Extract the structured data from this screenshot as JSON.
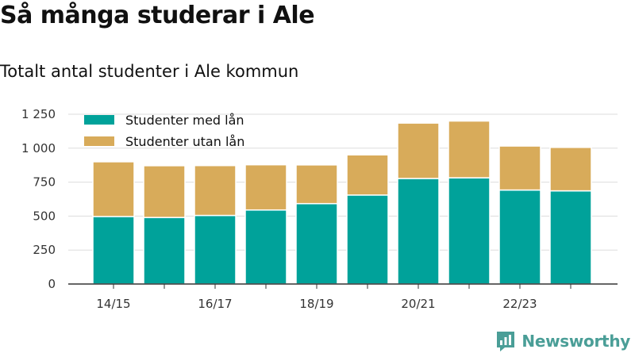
{
  "header": {
    "title": "Så många studerar i Ale",
    "subtitle": "Totalt antal studenter i Ale kommun"
  },
  "brand": {
    "name": "Newsworthy",
    "color": "#4a9e97",
    "icon": "newsworthy-logo-icon"
  },
  "chart_data": {
    "type": "bar",
    "stacked": true,
    "categories": [
      "14/15",
      "15/16",
      "16/17",
      "17/18",
      "18/19",
      "19/20",
      "20/21",
      "21/22",
      "22/23",
      "23/24"
    ],
    "tick_labels": [
      "14/15",
      "",
      "16/17",
      "",
      "18/19",
      "",
      "20/21",
      "",
      "22/23",
      ""
    ],
    "series": [
      {
        "name": "Studenter med lån",
        "color": "#00a29a",
        "values": [
          497,
          490,
          505,
          545,
          592,
          655,
          777,
          782,
          692,
          686
        ]
      },
      {
        "name": "Studenter utan lån",
        "color": "#d8ab5a",
        "values": [
          403,
          381,
          367,
          333,
          285,
          296,
          408,
          418,
          324,
          320
        ]
      }
    ],
    "y_ticks": [
      0,
      250,
      500,
      750,
      1000,
      1250
    ],
    "y_tick_labels": [
      "0",
      "250",
      "500",
      "750",
      "1 000",
      "1 250"
    ],
    "ylim": [
      0,
      1250
    ],
    "xlabel": "",
    "ylabel": "",
    "grid": true,
    "legend": "top-left"
  }
}
